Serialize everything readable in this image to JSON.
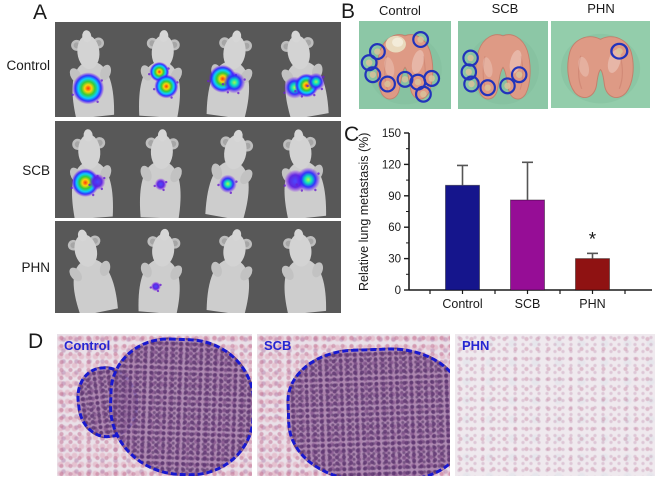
{
  "panels": {
    "a": {
      "label": "A",
      "row_labels": [
        "Control",
        "SCB",
        "PHN"
      ],
      "mice_per_row": 4,
      "signal_levels": [
        "strong",
        "moderate",
        "minimal"
      ]
    },
    "b": {
      "label": "B",
      "column_labels": [
        "Control",
        "SCB",
        "PHN"
      ],
      "nodule_counts": [
        9,
        6,
        1
      ],
      "circle_color": "#2233bb"
    },
    "c": {
      "label": "C"
    },
    "d": {
      "label": "D",
      "image_labels": [
        "Control",
        "SCB",
        "PHN"
      ],
      "label_color": "#2626d2",
      "outline_color": "#1818cf",
      "outlined_images": [
        "Control",
        "SCB"
      ]
    }
  },
  "chart_data": {
    "type": "bar",
    "categories": [
      "Control",
      "SCB",
      "PHN"
    ],
    "values": [
      100,
      86,
      30
    ],
    "errors_plus": [
      19,
      36,
      5
    ],
    "title": "",
    "xlabel": "",
    "ylabel": "Relative lung metastasis (%)",
    "ylim": [
      0,
      150
    ],
    "yticks": [
      0,
      30,
      60,
      90,
      120,
      150
    ],
    "minor_tick_step": 15,
    "bar_colors": [
      "#15158c",
      "#960d96",
      "#8f1212"
    ],
    "error_bar_color": "#555555",
    "annotations": [
      {
        "category": "PHN",
        "text": "*"
      }
    ],
    "grid": false,
    "legend_position": "none"
  }
}
